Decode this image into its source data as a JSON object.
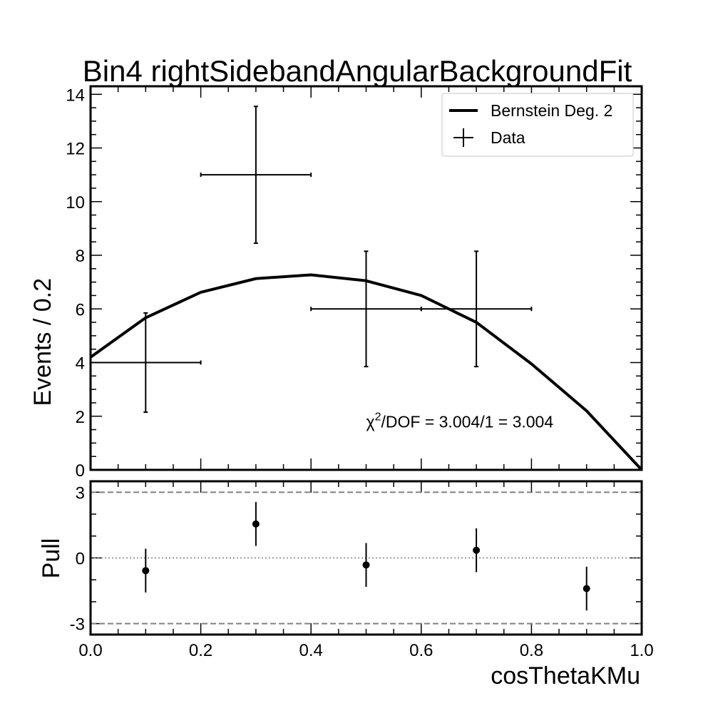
{
  "chart_data": [
    {
      "type": "scatter",
      "title": "Bin4 rightSidebandAngularBackgroundFit",
      "xlabel": "",
      "ylabel": "Events / 0.2",
      "xlim": [
        0.0,
        1.0
      ],
      "ylim": [
        0,
        14.3
      ],
      "y_ticks": [
        0,
        2,
        4,
        6,
        8,
        10,
        12,
        14
      ],
      "y_tick_labels": [
        "0",
        "2",
        "4",
        "6",
        "8",
        "10",
        "12",
        "14"
      ],
      "legend_placement": "top-right",
      "series": [
        {
          "name": "Data",
          "kind": "errorbar",
          "x": [
            0.1,
            0.3,
            0.5,
            0.7
          ],
          "y": [
            4,
            11,
            6,
            6
          ],
          "xerr": [
            0.1,
            0.1,
            0.1,
            0.1
          ],
          "yerr": [
            1.85,
            2.55,
            2.15,
            2.15
          ]
        },
        {
          "name": "Bernstein Deg. 2",
          "kind": "line",
          "x": [
            0.0,
            0.1,
            0.2,
            0.3,
            0.4,
            0.5,
            0.6,
            0.7,
            0.8,
            0.9,
            1.0
          ],
          "y": [
            4.2,
            5.67,
            6.62,
            7.13,
            7.27,
            7.05,
            6.5,
            5.5,
            3.95,
            2.2,
            0.0
          ]
        }
      ],
      "annotation": {
        "chi2_prefix": "χ",
        "chi2_sup": "2",
        "chi2_suffix": "/DOF = 3.004/1 = 3.004",
        "x": 0.5,
        "y": 1.8
      }
    },
    {
      "type": "scatter",
      "title": "",
      "xlabel": "cosThetaKMu",
      "ylabel": "Pull",
      "xlim": [
        0.0,
        1.0
      ],
      "ylim": [
        -3.5,
        3.5
      ],
      "x_ticks": [
        0.0,
        0.2,
        0.4,
        0.6,
        0.8,
        1.0
      ],
      "x_tick_labels": [
        "0.0",
        "0.2",
        "0.4",
        "0.6",
        "0.8",
        "1.0"
      ],
      "y_ticks": [
        -3,
        0,
        3
      ],
      "y_tick_labels": [
        "-3",
        "0",
        "3"
      ],
      "reference_lines": [
        {
          "y": 3,
          "style": "dashed",
          "color": "#808080"
        },
        {
          "y": 0,
          "style": "dotted",
          "color": "#808080"
        },
        {
          "y": -3,
          "style": "dashed",
          "color": "#808080"
        }
      ],
      "series": [
        {
          "name": "",
          "kind": "errorbar",
          "x": [
            0.1,
            0.3,
            0.5,
            0.7,
            0.9
          ],
          "y": [
            -0.58,
            1.55,
            -0.32,
            0.35,
            -1.4
          ],
          "yerr": [
            1,
            1,
            1,
            1,
            1
          ]
        }
      ]
    }
  ]
}
